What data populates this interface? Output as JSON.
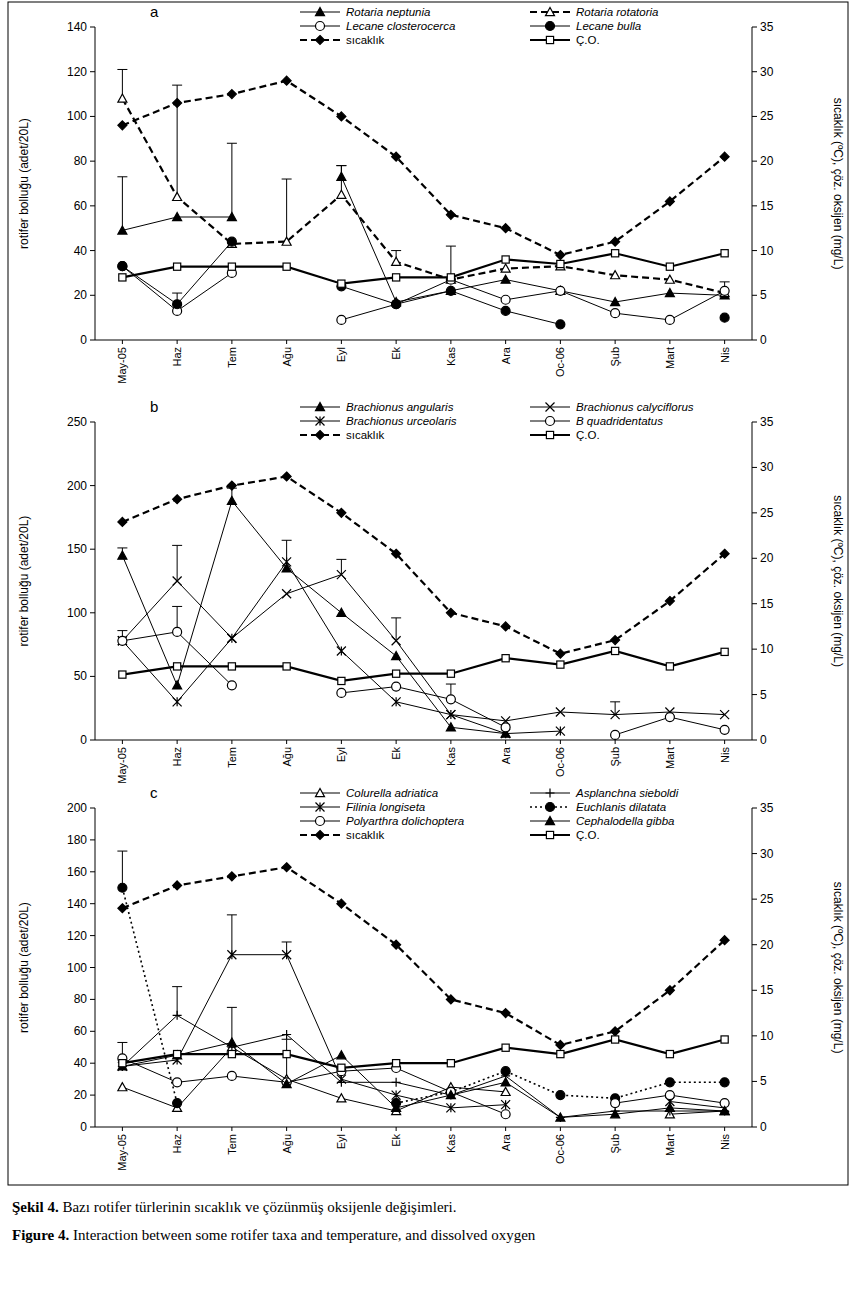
{
  "chart_data": [
    {
      "type": "line",
      "title": "a",
      "y_label": "rotifer bolluğu (adet/20L)",
      "y2_label": "sıcaklık (ºC), çöz. oksijen (mg/L)",
      "categories": [
        "May-05",
        "Haz",
        "Tem",
        "Ağu",
        "Eyl",
        "Ek",
        "Kas",
        "Ara",
        "Oc-06",
        "Şub",
        "Mart",
        "Nis"
      ],
      "ylim": [
        0,
        140
      ],
      "yticks": [
        0,
        20,
        40,
        60,
        80,
        100,
        120,
        140
      ],
      "y2lim": [
        0,
        35
      ],
      "y2ticks": [
        0,
        5,
        10,
        15,
        20,
        25,
        30,
        35
      ],
      "series": [
        {
          "name": "Rotaria neptunia",
          "color": "#000000",
          "marker": "triangle-filled",
          "line_style": "solid",
          "values": [
            49,
            55,
            55,
            null,
            73,
            17,
            22,
            27,
            22,
            17,
            21,
            20
          ],
          "errors": [
            24,
            null,
            33,
            null,
            5,
            null,
            null,
            null,
            null,
            null,
            null,
            null
          ]
        },
        {
          "name": "Rotaria rotatoria",
          "color": "#000000",
          "marker": "triangle-open",
          "line_style": "dashed",
          "values": [
            108,
            64,
            43,
            44,
            65,
            35,
            27,
            32,
            33,
            29,
            27,
            21
          ],
          "errors": [
            13,
            50,
            null,
            28,
            13,
            5,
            null,
            null,
            null,
            null,
            null,
            null
          ]
        },
        {
          "name": "Lecane closterocerca",
          "color": "#000000",
          "marker": "circle-open",
          "line_style": "solid",
          "values": [
            33,
            13,
            30,
            null,
            9,
            16,
            27,
            18,
            22,
            12,
            9,
            22
          ],
          "errors": [
            null,
            null,
            null,
            null,
            null,
            null,
            15,
            null,
            null,
            null,
            null,
            4
          ]
        },
        {
          "name": "Lecane bulla",
          "color": "#000000",
          "marker": "circle-filled",
          "line_style": "solid",
          "values": [
            33,
            16,
            44,
            null,
            24,
            16,
            22,
            13,
            7,
            null,
            null,
            10
          ],
          "errors": [
            null,
            5,
            null,
            null,
            null,
            null,
            null,
            null,
            null,
            null,
            null,
            null
          ]
        },
        {
          "name": "sıcaklık",
          "color": "#000000",
          "marker": "diamond-filled",
          "line_style": "dashed",
          "axis": "y2",
          "values": [
            24,
            26.5,
            27.5,
            29,
            25,
            20.5,
            14,
            12.5,
            9.5,
            11,
            15.5,
            20.5
          ]
        },
        {
          "name": "Ç.O.",
          "color": "#000000",
          "marker": "square-open",
          "line_style": "thick",
          "axis": "y2",
          "values": [
            7,
            8.2,
            8.2,
            8.2,
            6.3,
            7,
            7,
            9,
            8.5,
            9.7,
            8.2,
            9.7
          ]
        }
      ]
    },
    {
      "type": "line",
      "title": "b",
      "y_label": "rotifer bolluğu (adet/20L)",
      "y2_label": "sıcaklık (ºC), çöz. oksijen (mg/L)",
      "categories": [
        "May-05",
        "Haz",
        "Tem",
        "Ağu",
        "Eyl",
        "Ek",
        "Kas",
        "Ara",
        "Oc-06",
        "Şub",
        "Mart",
        "Nis"
      ],
      "ylim": [
        0,
        250
      ],
      "yticks": [
        0,
        50,
        100,
        150,
        200,
        250
      ],
      "y2lim": [
        0,
        35
      ],
      "y2ticks": [
        0,
        5,
        10,
        15,
        20,
        25,
        30,
        35
      ],
      "series": [
        {
          "name": "Brachionus angularis",
          "color": "#000000",
          "marker": "triangle-filled",
          "line_style": "solid",
          "values": [
            145,
            43,
            188,
            135,
            100,
            66,
            10,
            5,
            null,
            null,
            null,
            null
          ],
          "errors": [
            6,
            null,
            10,
            22,
            null,
            null,
            null,
            null,
            null,
            null,
            null,
            null
          ]
        },
        {
          "name": "Brachionus calyciflorus",
          "color": "#000000",
          "marker": "x",
          "line_style": "solid",
          "values": [
            78,
            125,
            80,
            115,
            130,
            78,
            20,
            15,
            22,
            20,
            22,
            20
          ],
          "errors": [
            null,
            28,
            null,
            null,
            12,
            18,
            null,
            null,
            null,
            10,
            null,
            null
          ]
        },
        {
          "name": "Brachionus urceolaris",
          "color": "#000000",
          "marker": "asterisk",
          "line_style": "solid",
          "values": [
            78,
            30,
            80,
            140,
            70,
            30,
            20,
            5,
            7,
            null,
            null,
            null
          ],
          "errors": [
            null,
            null,
            null,
            null,
            null,
            null,
            null,
            null,
            null,
            null,
            null,
            null
          ]
        },
        {
          "name": "B quadridentatus",
          "color": "#000000",
          "marker": "circle-open",
          "line_style": "solid",
          "values": [
            78,
            85,
            43,
            null,
            37,
            42,
            32,
            10,
            null,
            4,
            18,
            8
          ],
          "errors": [
            8,
            20,
            null,
            null,
            null,
            null,
            12,
            null,
            null,
            null,
            null,
            null
          ]
        },
        {
          "name": "sıcaklık",
          "color": "#000000",
          "marker": "diamond-filled",
          "line_style": "dashed",
          "axis": "y2",
          "values": [
            24,
            26.5,
            28,
            29,
            25,
            20.5,
            14,
            12.5,
            9.5,
            11,
            15.3,
            20.5
          ]
        },
        {
          "name": "Ç.O.",
          "color": "#000000",
          "marker": "square-open",
          "line_style": "thick",
          "axis": "y2",
          "values": [
            7.2,
            8.1,
            8.1,
            8.1,
            6.5,
            7.3,
            7.3,
            9,
            8.3,
            9.8,
            8.1,
            9.7
          ]
        }
      ]
    },
    {
      "type": "line",
      "title": "c",
      "y_label": "rotifer bolluğu (adet/20L)",
      "y2_label": "sıcaklık (ºC), çöz. oksijen (mg/L)",
      "categories": [
        "May-05",
        "Haz",
        "Tem",
        "Ağu",
        "Eyl",
        "Ek",
        "Kas",
        "Ara",
        "Oc-06",
        "Şub",
        "Mart",
        "Nis"
      ],
      "ylim": [
        0,
        200
      ],
      "yticks": [
        0,
        20,
        40,
        60,
        80,
        100,
        120,
        140,
        160,
        180,
        200
      ],
      "y2lim": [
        0,
        35
      ],
      "y2ticks": [
        0,
        5,
        10,
        15,
        20,
        25,
        30,
        35
      ],
      "series": [
        {
          "name": "Colurella adriatica",
          "color": "#000000",
          "marker": "triangle-open",
          "line_style": "solid",
          "values": [
            25,
            12,
            50,
            30,
            18,
            10,
            25,
            22,
            null,
            null,
            8,
            10
          ],
          "errors": [
            null,
            null,
            null,
            25,
            null,
            null,
            null,
            null,
            null,
            null,
            null,
            null
          ]
        },
        {
          "name": "Asplanchna sieboldi",
          "color": "#000000",
          "marker": "plus",
          "line_style": "solid",
          "values": [
            38,
            70,
            50,
            58,
            28,
            28,
            20,
            32,
            6,
            10,
            10,
            10
          ],
          "errors": [
            null,
            18,
            null,
            null,
            null,
            null,
            null,
            null,
            null,
            null,
            null,
            null
          ]
        },
        {
          "name": "Filinia longiseta",
          "color": "#000000",
          "marker": "asterisk",
          "line_style": "solid",
          "values": [
            38,
            42,
            108,
            108,
            30,
            20,
            12,
            14,
            null,
            null,
            16,
            12
          ],
          "errors": [
            null,
            null,
            25,
            8,
            null,
            null,
            null,
            null,
            null,
            null,
            null,
            null
          ]
        },
        {
          "name": "Euchlanis dilatata",
          "color": "#000000",
          "marker": "circle-filled",
          "line_style": "dotted",
          "values": [
            150,
            15,
            null,
            null,
            null,
            15,
            22,
            35,
            20,
            18,
            28,
            28
          ],
          "errors": [
            23,
            null,
            null,
            null,
            null,
            null,
            null,
            null,
            null,
            null,
            null,
            null
          ]
        },
        {
          "name": "Polyarthra dolichoptera",
          "color": "#000000",
          "marker": "circle-open",
          "line_style": "solid",
          "values": [
            43,
            28,
            32,
            28,
            35,
            37,
            22,
            8,
            null,
            15,
            20,
            15
          ],
          "errors": [
            10,
            null,
            null,
            null,
            null,
            null,
            null,
            null,
            null,
            null,
            null,
            null
          ]
        },
        {
          "name": "Cephalodella gibba",
          "color": "#000000",
          "marker": "triangle-filled",
          "line_style": "solid",
          "values": [
            38,
            45,
            53,
            27,
            45,
            12,
            20,
            28,
            6,
            8,
            12,
            10
          ],
          "errors": [
            null,
            null,
            22,
            null,
            null,
            null,
            null,
            null,
            null,
            null,
            null,
            null
          ]
        },
        {
          "name": "sıcaklık",
          "color": "#000000",
          "marker": "diamond-filled",
          "line_style": "dashed",
          "axis": "y2",
          "values": [
            24,
            26.5,
            27.5,
            28.5,
            24.5,
            20,
            14,
            12.5,
            9,
            10.5,
            15,
            20.5
          ]
        },
        {
          "name": "Ç.O.",
          "color": "#000000",
          "marker": "square-open",
          "line_style": "thick",
          "axis": "y2",
          "values": [
            7,
            8,
            8,
            8,
            6.5,
            7,
            7,
            8.7,
            8,
            9.6,
            8,
            9.6
          ]
        }
      ]
    }
  ],
  "caption": {
    "tr_label": "Şekil 4.",
    "tr_text": " Bazı rotifer türlerinin sıcaklık ve çözünmüş oksijenle değişimleri.",
    "en_label": "Figure 4.",
    "en_text": " Interaction between some rotifer taxa and temperature, and dissolved oxygen"
  }
}
